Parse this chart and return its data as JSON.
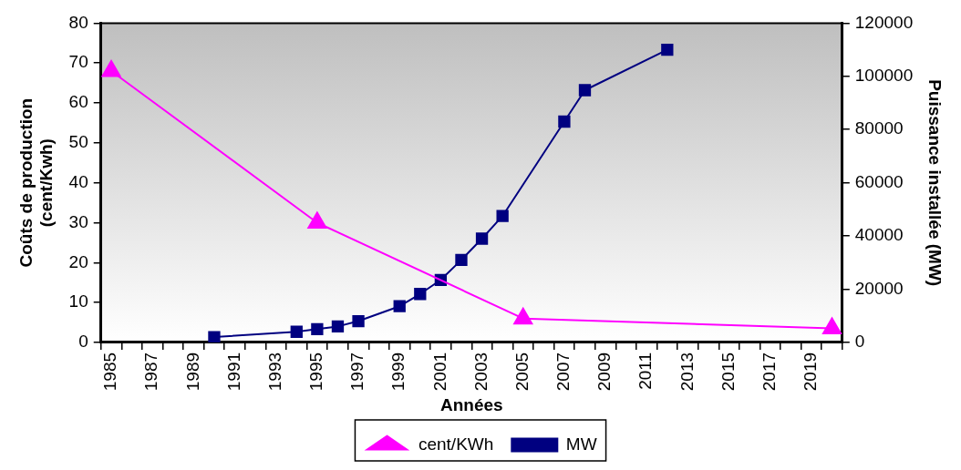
{
  "chart_data": {
    "type": "line",
    "xlabel": "Années",
    "ylabel": "Coûts de production\n(cent/Kwh)",
    "y2label": "Puissance installée (MW)",
    "categories": [
      "1985",
      null,
      "1987",
      null,
      "1989",
      null,
      "1991",
      null,
      "1993",
      null,
      "1995",
      null,
      "1997",
      null,
      "1999",
      null,
      "2001",
      null,
      "2003",
      null,
      "2005",
      null,
      "2007",
      null,
      "2009",
      null,
      "2011",
      null,
      "2013",
      null,
      "2015",
      null,
      "2017",
      null,
      "2019",
      null
    ],
    "series": [
      {
        "name": "cent/KWh",
        "color": "#ff00ff",
        "marker": "triangle",
        "values": [
          68,
          null,
          null,
          null,
          null,
          null,
          null,
          null,
          null,
          null,
          30,
          null,
          null,
          null,
          null,
          null,
          null,
          null,
          null,
          null,
          6,
          null,
          null,
          null,
          null,
          null,
          null,
          null,
          null,
          null,
          null,
          null,
          null,
          null,
          null,
          3.5
        ]
      },
      {
        "name": "MW",
        "color": "#000080",
        "marker": "square",
        "axis": "y2",
        "values": [
          null,
          null,
          null,
          null,
          null,
          2000,
          null,
          null,
          null,
          4000,
          5000,
          6000,
          8000,
          null,
          13600,
          18200,
          23500,
          31000,
          39000,
          47500,
          null,
          null,
          83000,
          94800,
          null,
          null,
          null,
          110000,
          null,
          null,
          null,
          null,
          null,
          null,
          null,
          null
        ]
      }
    ],
    "ylim": [
      0,
      80
    ],
    "yticks": [
      0,
      10,
      20,
      30,
      40,
      50,
      60,
      70,
      80
    ],
    "y2lim": [
      0,
      120000
    ],
    "y2ticks": [
      0,
      20000,
      40000,
      60000,
      80000,
      100000,
      120000
    ],
    "grid": false,
    "legend": "bottom"
  }
}
